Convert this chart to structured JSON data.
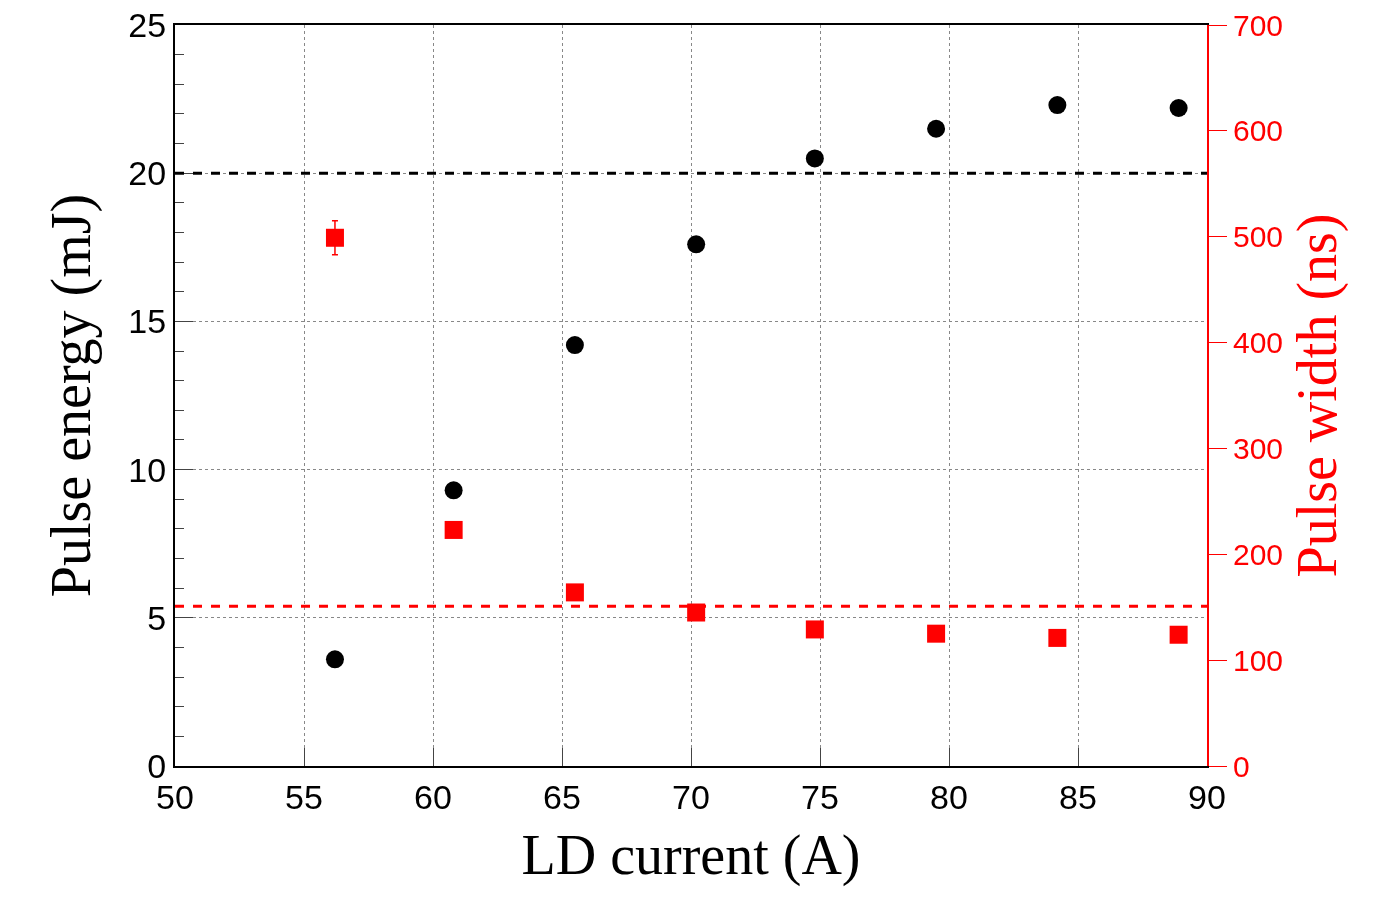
{
  "chart_data": {
    "type": "scatter",
    "xlabel": "LD current (A)",
    "ylabel": "Pulse energy (mJ)",
    "y2label": "Pulse width (ns)",
    "xlim": [
      50,
      90
    ],
    "xticks": [
      50,
      55,
      60,
      65,
      70,
      75,
      80,
      85,
      90
    ],
    "ylim": [
      0,
      25
    ],
    "yticks": [
      0,
      5,
      10,
      15,
      20,
      25
    ],
    "y2lim": [
      0,
      700
    ],
    "y2ticks": [
      0,
      100,
      200,
      300,
      400,
      500,
      600,
      700
    ],
    "grid": true,
    "series": [
      {
        "color": "#000000",
        "marker": "circle",
        "x": [
          56.2,
          60.8,
          65.5,
          70.2,
          74.8,
          79.5,
          84.2,
          88.9
        ],
        "values": [
          3.6,
          9.3,
          14.2,
          17.6,
          20.5,
          21.5,
          22.3,
          22.2
        ]
      },
      {
        "color": "#ff0000",
        "marker": "square",
        "axis": "y2",
        "x": [
          56.2,
          60.8,
          65.5,
          70.2,
          74.8,
          79.5,
          84.2,
          88.9
        ],
        "values": [
          499,
          223,
          164,
          145,
          129,
          125,
          121,
          124
        ],
        "errors": [
          16,
          null,
          null,
          null,
          null,
          null,
          null,
          null
        ]
      }
    ],
    "ref_lines": [
      {
        "axis": "y",
        "value": 20,
        "color": "#000000",
        "line_style": "dashed"
      },
      {
        "axis": "y2",
        "value": 151,
        "color": "#ff0000",
        "line_style": "dashed"
      }
    ]
  }
}
